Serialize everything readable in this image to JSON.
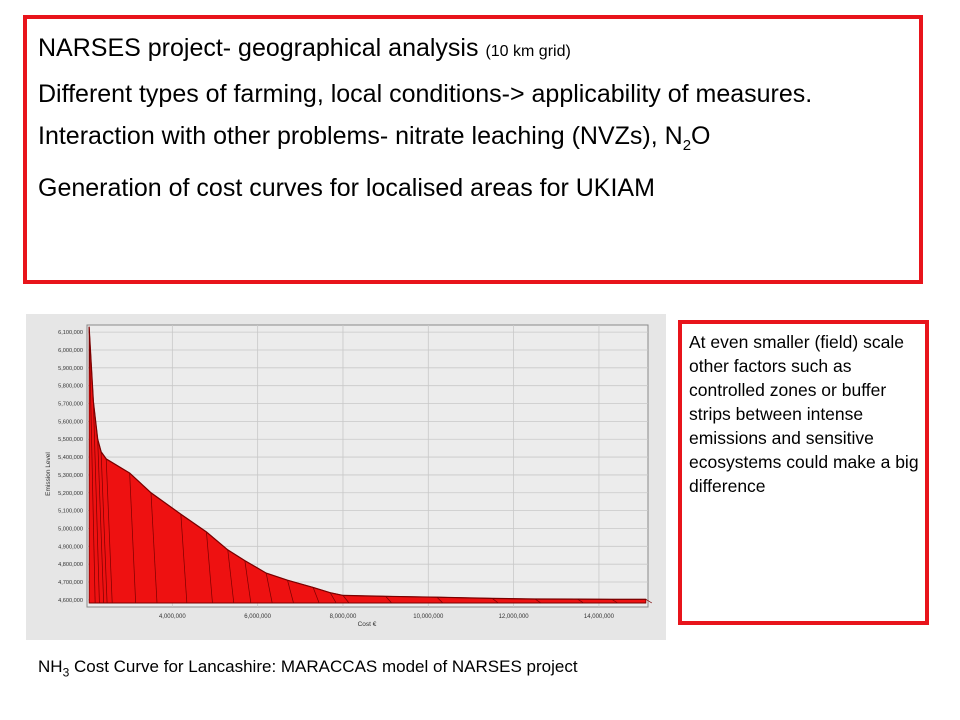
{
  "top_box": {
    "title_main": "NARSES project- geographical analysis",
    "title_note": "(10 km grid)",
    "line2": "Different types of farming, local conditions-> applicability of measures.",
    "line3_text": "Interaction with other problems- nitrate leaching (NVZs), N",
    "line3_sub": "2",
    "line3_end": "O",
    "line4": "Generation of cost curves for localised areas for UKIAM"
  },
  "side_box": {
    "text": "At even smaller (field) scale other factors such as controlled zones or buffer strips between intense emissions and sensitive ecosystems could make a big difference"
  },
  "caption": {
    "prefix": "NH",
    "sub": "3",
    "text": " Cost Curve for Lancashire: MARACCAS model of NARSES project"
  },
  "chart_data": {
    "type": "area",
    "xlabel": "Cost €",
    "ylabel": "Emission Level",
    "xlim": [
      2000000,
      15150000
    ],
    "ylim": [
      4560000,
      6140000
    ],
    "x_ticks": [
      "4,000,000",
      "6,000,000",
      "8,000,000",
      "10,000,000",
      "12,000,000",
      "14,000,000"
    ],
    "y_ticks": [
      "4,600,000",
      "4,700,000",
      "4,800,000",
      "4,900,000",
      "5,000,000",
      "5,100,000",
      "5,200,000",
      "5,300,000",
      "5,400,000",
      "5,500,000",
      "5,600,000",
      "5,700,000",
      "5,800,000",
      "5,900,000",
      "6,000,000",
      "6,100,000"
    ],
    "grid": true,
    "colors": {
      "fill": "#ee1111",
      "edge": "#7a0000",
      "plot_bg": "#ececec",
      "grid": "#c8c8c8"
    },
    "series": [
      {
        "x": [
          2050000,
          2150000,
          2250000,
          2330000,
          2450000,
          3000000,
          3500000,
          4200000,
          4800000,
          5300000,
          5700000,
          6200000,
          6700000,
          7300000,
          7700000,
          8000000,
          9000000,
          10200000,
          11500000,
          12500000,
          13500000,
          14300000,
          15100000
        ],
        "y": [
          6130000,
          5710000,
          5500000,
          5430000,
          5390000,
          5310000,
          5200000,
          5080000,
          4980000,
          4880000,
          4820000,
          4750000,
          4710000,
          4670000,
          4640000,
          4625000,
          4620000,
          4615000,
          4608000,
          4605000,
          4604000,
          4603000,
          4603000
        ]
      }
    ]
  }
}
